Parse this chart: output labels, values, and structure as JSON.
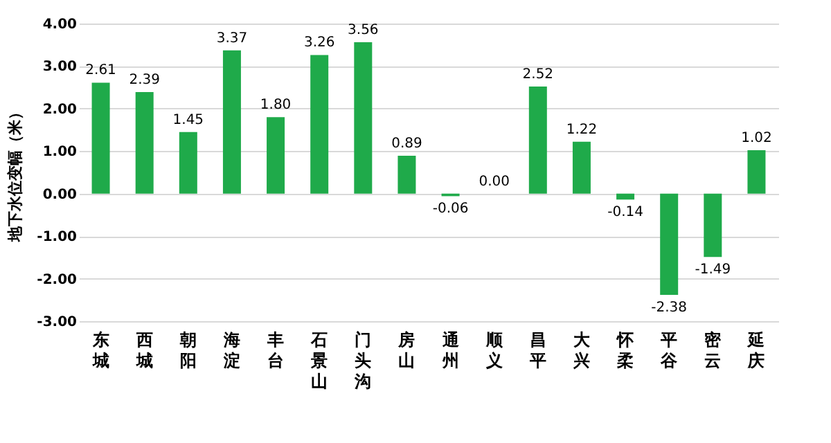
{
  "chart_data": {
    "type": "bar",
    "ylabel": "地下水位变幅（米）",
    "categories": [
      "东城",
      "西城",
      "朝阳",
      "海淀",
      "丰台",
      "石景山",
      "门头沟",
      "房山",
      "通州",
      "顺义",
      "昌平",
      "大兴",
      "怀柔",
      "平谷",
      "密云",
      "延庆"
    ],
    "values": [
      2.61,
      2.39,
      1.45,
      3.37,
      1.8,
      3.26,
      3.56,
      0.89,
      -0.06,
      0.0,
      2.52,
      1.22,
      -0.14,
      -2.38,
      -1.49,
      1.02
    ],
    "value_labels": [
      "2.61",
      "2.39",
      "1.45",
      "3.37",
      "1.80",
      "3.26",
      "3.56",
      "0.89",
      "-0.06",
      "0.00",
      "2.52",
      "1.22",
      "-0.14",
      "-2.38",
      "-1.49",
      "1.02"
    ],
    "color": "#1faa4a",
    "ylim": [
      -3,
      4
    ],
    "yticks": [
      {
        "value": -3,
        "label": "-3.00"
      },
      {
        "value": -2,
        "label": "-2.00"
      },
      {
        "value": -1,
        "label": "-1.00"
      },
      {
        "value": 0,
        "label": "0.00"
      },
      {
        "value": 1,
        "label": "1.00"
      },
      {
        "value": 2,
        "label": "2.00"
      },
      {
        "value": 3,
        "label": "3.00"
      },
      {
        "value": 4,
        "label": "4.00"
      }
    ],
    "grid": "y"
  }
}
